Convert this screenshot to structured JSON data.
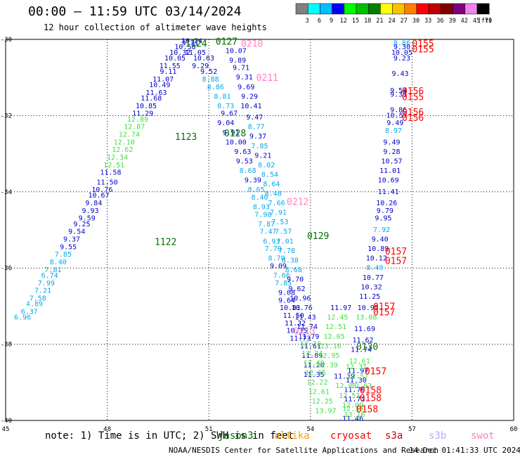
{
  "title": "00:00 – 11:59 UTC 03/14/2024",
  "subtitle": "12 hour collection of altimeter wave heights",
  "colorbar": {
    "unit": "(ft)",
    "ticks": [
      "3",
      "6",
      "9",
      "12",
      "15",
      "18",
      "21",
      "24",
      "27",
      "30",
      "33",
      "36",
      "39",
      "42",
      "45",
      "70"
    ],
    "colors": [
      "#808080",
      "#00ffff",
      "#00bfff",
      "#0000ff",
      "#00ff00",
      "#00c000",
      "#008000",
      "#ffff00",
      "#ffc000",
      "#ff8000",
      "#ff0000",
      "#c00000",
      "#800000",
      "#800080",
      "#ee82ee",
      "#000000"
    ]
  },
  "note": {
    "prefix": "note: 1) Time is in UTC; 2) SWH is in feet",
    "satellites": [
      {
        "name": "jason3",
        "color": "#007000"
      },
      {
        "name": "altika",
        "color": "#ff9900"
      },
      {
        "name": "cryosat",
        "color": "#ff0000"
      },
      {
        "name": "s3a",
        "color": "#cc0000"
      },
      {
        "name": "s3b",
        "color": "#b0b0ff"
      },
      {
        "name": "swot",
        "color": "#ff80c0"
      }
    ]
  },
  "credit": "NOAA/NESDIS Center for Satellite Applications and Research",
  "stamp": "14 Dec 01:41:33 UTC 2024",
  "chart_data": {
    "type": "scatter",
    "xlim": [
      45,
      60
    ],
    "ylim": [
      -40,
      -30
    ],
    "x_ticks": [
      "45",
      "48",
      "51",
      "54",
      "57",
      "60"
    ],
    "y_ticks": [
      "-30",
      "-32",
      "-34",
      "-36",
      "-38",
      "-40"
    ],
    "grid": true,
    "time_labels": [
      {
        "x": 51.2,
        "y": -30.05,
        "text": "0127",
        "sat": "jason3"
      },
      {
        "x": 50.3,
        "y": -30.1,
        "text": "1124",
        "sat": "jason3"
      },
      {
        "x": 50.0,
        "y": -32.55,
        "text": "1123",
        "sat": "jason3"
      },
      {
        "x": 49.4,
        "y": -35.3,
        "text": "1122",
        "sat": "jason3"
      },
      {
        "x": 51.45,
        "y": -32.45,
        "text": "0128",
        "sat": "jason3"
      },
      {
        "x": 53.9,
        "y": -35.15,
        "text": "0129",
        "sat": "jason3"
      },
      {
        "x": 55.35,
        "y": -38.05,
        "text": "0130",
        "sat": "jason3"
      },
      {
        "x": 51.95,
        "y": -30.1,
        "text": "0210",
        "sat": "swot"
      },
      {
        "x": 52.4,
        "y": -31.0,
        "text": "0211",
        "sat": "swot"
      },
      {
        "x": 53.3,
        "y": -34.25,
        "text": "0212",
        "sat": "swot"
      },
      {
        "x": 53.5,
        "y": -37.65,
        "text": "0213",
        "sat": "swot"
      },
      {
        "x": 57.0,
        "y": -30.1,
        "text": "0155",
        "sat": "cryosat"
      },
      {
        "x": 57.0,
        "y": -30.25,
        "text": "0155",
        "sat": "cryosat"
      },
      {
        "x": 56.7,
        "y": -31.35,
        "text": "0156",
        "sat": "cryosat"
      },
      {
        "x": 56.7,
        "y": -31.5,
        "text": "0155",
        "sat": "cryosat"
      },
      {
        "x": 56.7,
        "y": -31.9,
        "text": "0156",
        "sat": "cryosat"
      },
      {
        "x": 56.7,
        "y": -32.05,
        "text": "0156",
        "sat": "cryosat"
      },
      {
        "x": 56.2,
        "y": -35.55,
        "text": "0157",
        "sat": "cryosat"
      },
      {
        "x": 56.2,
        "y": -35.8,
        "text": "0157",
        "sat": "cryosat"
      },
      {
        "x": 55.85,
        "y": -37.0,
        "text": "0157",
        "sat": "cryosat"
      },
      {
        "x": 55.85,
        "y": -37.15,
        "text": "0157",
        "sat": "cryosat"
      },
      {
        "x": 55.6,
        "y": -38.7,
        "text": "0157",
        "sat": "cryosat"
      },
      {
        "x": 55.45,
        "y": -39.2,
        "text": "0158",
        "sat": "cryosat"
      },
      {
        "x": 55.45,
        "y": -39.4,
        "text": "0158",
        "sat": "cryosat"
      },
      {
        "x": 55.35,
        "y": -39.7,
        "text": "0158",
        "sat": "cryosat"
      }
    ],
    "series": [
      {
        "name": "jason3 pass A",
        "x": [
          45.5,
          45.7,
          45.85,
          45.95,
          46.1,
          46.2,
          46.3,
          46.4,
          46.55,
          46.7,
          46.85,
          46.95,
          47.1,
          47.25,
          47.4,
          47.5,
          47.6,
          47.75,
          47.85,
          48.0,
          48.1,
          48.2,
          48.3,
          48.45,
          48.5,
          48.65,
          48.8,
          48.9,
          49.05,
          49.15,
          49.3,
          49.45,
          49.55,
          49.65,
          49.8,
          49.85,
          50.0,
          50.15,
          50.3,
          50.45,
          50.5
        ],
        "y": [
          -37.3,
          -37.15,
          -36.95,
          -36.8,
          -36.6,
          -36.4,
          -36.2,
          -36.05,
          -35.85,
          -35.65,
          -35.45,
          -35.25,
          -35.05,
          -34.85,
          -34.7,
          -34.5,
          -34.3,
          -34.1,
          -33.95,
          -33.75,
          -33.5,
          -33.3,
          -33.1,
          -32.9,
          -32.7,
          -32.5,
          -32.3,
          -32.1,
          -31.95,
          -31.75,
          -31.55,
          -31.4,
          -31.2,
          -31.05,
          -30.85,
          -30.7,
          -30.5,
          -30.35,
          -30.2,
          -30.1,
          -30.05
        ],
        "values": [
          6.96,
          6.37,
          4.89,
          7.58,
          7.21,
          7.99,
          6.74,
          7.81,
          8.4,
          7.85,
          9.55,
          9.37,
          9.54,
          9.25,
          9.59,
          9.93,
          9.84,
          10.67,
          10.76,
          11.5,
          11.58,
          12.51,
          12.34,
          12.62,
          12.1,
          12.74,
          12.87,
          12.89,
          11.29,
          10.85,
          11.68,
          11.63,
          10.49,
          11.07,
          9.11,
          11.55,
          10.05,
          10.32,
          10.58,
          9.71,
          10.24
        ]
      },
      {
        "name": "jason3 pass B",
        "x": [
          50.6,
          50.85,
          50.75,
          51.0,
          51.05,
          51.2,
          51.4,
          51.5,
          51.6,
          51.5,
          51.65,
          51.8,
          52.0,
          52.05,
          52.15,
          52.3,
          52.4,
          52.5,
          52.55,
          52.6,
          52.7,
          52.75,
          52.85,
          52.9,
          53.0,
          53.05,
          53.15,
          53.2,
          53.3,
          53.3,
          53.4,
          53.5,
          53.55,
          53.6,
          53.7
        ],
        "y": [
          -30.35,
          -30.5,
          -30.7,
          -30.85,
          -31.05,
          -31.25,
          -31.5,
          -31.75,
          -31.95,
          -32.2,
          -32.45,
          -32.7,
          -32.95,
          -33.2,
          -33.45,
          -33.7,
          -33.95,
          -34.15,
          -34.4,
          -34.6,
          -34.85,
          -35.05,
          -35.3,
          -35.5,
          -35.75,
          -35.95,
          -36.2,
          -36.4,
          -36.65,
          -36.85,
          -37.05,
          -37.25,
          -37.45,
          -37.65,
          -37.85
        ],
        "values": [
          11.05,
          10.63,
          9.29,
          9.52,
          8.88,
          8.86,
          8.81,
          8.73,
          9.67,
          9.04,
          9.91,
          10.0,
          9.63,
          9.53,
          8.68,
          9.39,
          8.65,
          8.4,
          8.93,
          7.98,
          7.87,
          7.47,
          6.93,
          7.7,
          8.7,
          9.09,
          7.66,
          7.85,
          9.08,
          9.64,
          10.81,
          11.5,
          11.32,
          10.35,
          11.73
        ]
      },
      {
        "name": "swot pass",
        "x": [
          51.8,
          51.85,
          51.95,
          52.05,
          52.1,
          52.2,
          52.25,
          52.35,
          52.4,
          52.45,
          52.5,
          52.6,
          52.7,
          52.8,
          52.85,
          52.9,
          53.0,
          53.05,
          53.1,
          53.2,
          53.25,
          53.3,
          53.4,
          53.5,
          53.55,
          53.6,
          53.7,
          53.75,
          53.85,
          53.9,
          53.95,
          54.0,
          54.05,
          54.1,
          54.1
        ],
        "y": [
          -30.3,
          -30.55,
          -30.75,
          -31.0,
          -31.25,
          -31.5,
          -31.75,
          -32.05,
          -32.3,
          -32.55,
          -32.8,
          -33.05,
          -33.3,
          -33.55,
          -33.8,
          -34.05,
          -34.3,
          -34.55,
          -34.8,
          -35.05,
          -35.3,
          -35.55,
          -35.8,
          -36.05,
          -36.3,
          -36.55,
          -36.8,
          -37.05,
          -37.3,
          -37.55,
          -37.8,
          -38.05,
          -38.3,
          -38.55,
          -38.8
        ],
        "values": [
          10.07,
          9.89,
          9.71,
          9.31,
          9.69,
          9.29,
          10.41,
          9.47,
          8.77,
          9.37,
          7.85,
          9.21,
          8.02,
          8.54,
          8.64,
          8.48,
          7.66,
          7.91,
          7.53,
          7.57,
          7.01,
          7.78,
          8.38,
          8.68,
          9.7,
          9.62,
          10.96,
          10.76,
          11.43,
          11.74,
          11.79,
          11.61,
          11.09,
          11.2,
          11.35
        ]
      },
      {
        "name": "cryosat pass",
        "x": [
          56.7,
          56.7,
          56.7,
          56.7,
          56.65,
          56.6,
          56.6,
          56.6,
          56.55,
          56.5,
          56.45,
          56.4,
          56.4,
          56.4,
          56.35,
          56.3,
          56.3,
          56.25,
          56.2,
          56.15,
          56.1,
          56.05,
          56.0,
          55.95,
          55.9,
          55.85,
          55.8,
          55.75,
          55.7,
          55.65,
          55.6,
          55.55,
          55.5,
          55.45,
          55.4,
          55.35,
          55.3,
          55.3,
          55.25,
          55.25
        ],
        "y": [
          -30.1,
          -30.2,
          -30.35,
          -30.5,
          -30.9,
          -31.35,
          -31.45,
          -31.85,
          -32.0,
          -32.2,
          -32.4,
          -32.7,
          -32.95,
          -33.2,
          -33.45,
          -33.7,
          -34.0,
          -34.3,
          -34.5,
          -34.7,
          -35.0,
          -35.25,
          -35.5,
          -35.75,
          -36.0,
          -36.25,
          -36.5,
          -36.75,
          -37.05,
          -37.3,
          -37.6,
          -37.9,
          -38.15,
          -38.45,
          -38.7,
          -38.95,
          -39.2,
          -39.45,
          -39.7,
          -39.95
        ],
        "values": [
          8.86,
          9.3,
          10.05,
          9.23,
          9.43,
          9.54,
          9.31,
          9.86,
          10.57,
          9.49,
          8.97,
          9.49,
          9.28,
          10.57,
          11.01,
          10.69,
          11.41,
          10.26,
          9.79,
          9.95,
          7.92,
          9.4,
          10.89,
          10.12,
          8.4,
          10.77,
          10.32,
          11.25,
          10.95,
          13.08,
          11.69,
          11.62,
          11.74,
          12.61,
          11.97,
          11.3,
          11.76,
          11.73,
          12.39,
          11.46
        ]
      },
      {
        "name": "jason3 pass C",
        "x": [
          54.0,
          54.05,
          54.1,
          54.15,
          54.2,
          54.25,
          54.35,
          54.45,
          54.5,
          54.55,
          54.6,
          54.7,
          54.75,
          54.8,
          54.9,
          55.0,
          55.05,
          55.15,
          55.25,
          55.3,
          55.35,
          55.4,
          55.5
        ],
        "y": [
          -38.0,
          -38.25,
          -38.5,
          -38.75,
          -39.0,
          -39.25,
          -39.5,
          -39.75,
          -38.55,
          -38.3,
          -38.05,
          -37.8,
          -37.55,
          -37.3,
          -37.05,
          -38.85,
          -39.1,
          -39.35,
          -39.6,
          -39.85,
          -38.6,
          -38.85,
          -39.1
        ],
        "values": [
          12.22,
          13.24,
          13.49,
          12.15,
          12.22,
          12.61,
          12.25,
          13.97,
          12.39,
          12.95,
          13.16,
          12.05,
          12.51,
          12.45,
          11.97,
          11.39,
          12.03,
          12.53,
          12.09,
          13.16,
          12.37,
          12.57,
          12.03
        ]
      }
    ]
  }
}
